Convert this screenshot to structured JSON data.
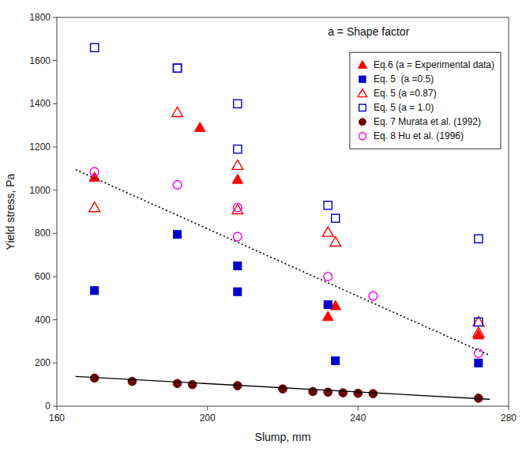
{
  "chart_data": {
    "type": "scatter",
    "xlabel": "Slump, mm",
    "ylabel": "Yield stress, Pa",
    "annotation": "a = Shape factor",
    "xlim": [
      160,
      280
    ],
    "ylim": [
      0,
      1800
    ],
    "xticks": [
      160,
      200,
      240,
      280
    ],
    "yticks": [
      0,
      200,
      400,
      600,
      800,
      1000,
      1200,
      1400,
      1600,
      1800
    ],
    "grid": false,
    "legend": "upper right",
    "series": [
      {
        "name": "Eq.6 (a = Experimental data)",
        "type": "scatter",
        "color": "#FF0000",
        "marker": "triangle",
        "x": [
          170,
          198,
          208,
          232,
          234,
          272
        ],
        "values": [
          1060,
          1290,
          1050,
          415,
          465,
          330
        ]
      },
      {
        "name": "Eq. 5  (a =0.5)",
        "type": "scatter",
        "color": "#0000CC",
        "marker": "square",
        "x": [
          170,
          192,
          208,
          208,
          232,
          234,
          272
        ],
        "values": [
          535,
          795,
          650,
          530,
          470,
          210,
          200
        ]
      },
      {
        "name": "Eq. 5 (a =0.87)",
        "type": "scatter",
        "color": "#FF0000",
        "marker": "open-triangle",
        "x": [
          170,
          192,
          208,
          208,
          232,
          234,
          272,
          272
        ],
        "values": [
          920,
          1360,
          1115,
          910,
          805,
          760,
          390,
          340
        ]
      },
      {
        "name": "Eq. 5 (a = 1.0)",
        "type": "scatter",
        "color": "#0000CC",
        "marker": "open-square",
        "x": [
          170,
          192,
          192,
          208,
          208,
          232,
          234,
          272,
          272
        ],
        "values": [
          1660,
          1565,
          1565,
          1400,
          1190,
          930,
          870,
          390,
          775
        ]
      },
      {
        "name": "Eq. 7 Murata et al. (1992)",
        "type": "scatter",
        "color": "#6B0000",
        "marker": "circle",
        "x": [
          170,
          180,
          192,
          196,
          208,
          220,
          228,
          232,
          236,
          240,
          244,
          272
        ],
        "values": [
          130,
          115,
          105,
          100,
          95,
          80,
          68,
          65,
          62,
          60,
          58,
          37
        ]
      },
      {
        "type": "line",
        "color": "black",
        "line_style": "solid",
        "x": [
          165,
          275
        ],
        "values": [
          138,
          32
        ]
      },
      {
        "name": "Eq. 8 Hu et al. (1996)",
        "type": "scatter",
        "color": "#EE00EE",
        "marker": "open-circle",
        "x": [
          170,
          192,
          208,
          208,
          232,
          244,
          272
        ],
        "values": [
          1085,
          1025,
          920,
          785,
          600,
          510,
          245
        ]
      },
      {
        "type": "line",
        "color": "black",
        "line_style": "dotted",
        "x": [
          165,
          275
        ],
        "values": [
          1095,
          235
        ]
      }
    ]
  }
}
